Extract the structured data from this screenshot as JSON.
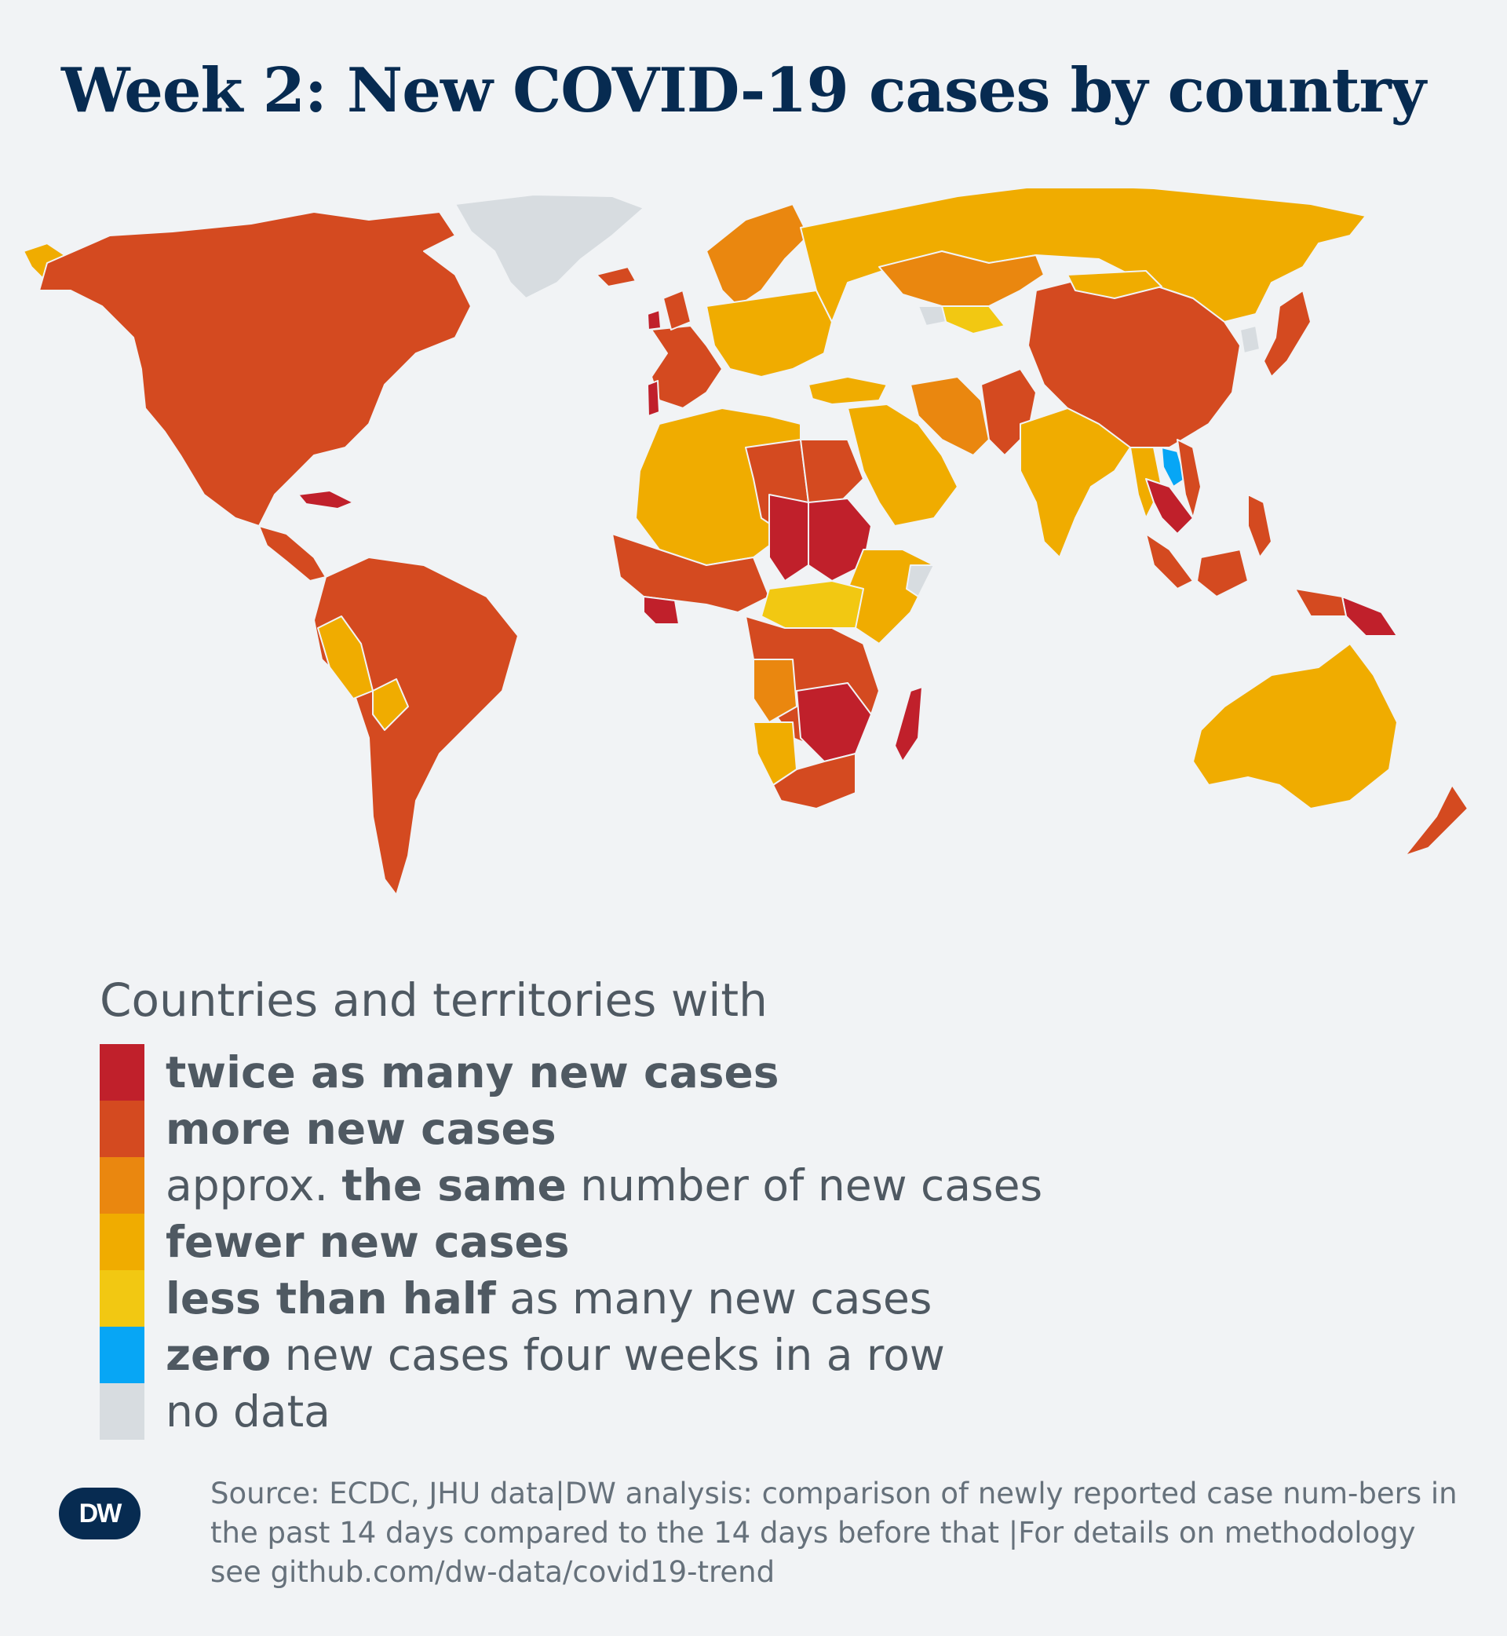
{
  "title": "Week 2: New COVID-19 cases by country",
  "colors": {
    "background": "#f1f3f5",
    "twice": "#c0202b",
    "more": "#d44a20",
    "same": "#ea870f",
    "fewer": "#f0ac00",
    "less_than_half": "#f2c812",
    "zero": "#07a6f5",
    "no_data": "#d7dce0"
  },
  "legend": {
    "heading": "Countries and territories with",
    "items": [
      {
        "key": "twice",
        "color": "#c0202b",
        "bold": "twice as many new cases",
        "rest": ""
      },
      {
        "key": "more",
        "color": "#d44a20",
        "bold": "more new cases",
        "rest": ""
      },
      {
        "key": "same",
        "color": "#ea870f",
        "pre": "approx. ",
        "bold": "the same",
        "rest": " number of new cases"
      },
      {
        "key": "fewer",
        "color": "#f0ac00",
        "bold": "fewer new cases",
        "rest": ""
      },
      {
        "key": "less_than_half",
        "color": "#f2c812",
        "bold": "less than half",
        "rest": " as many new cases"
      },
      {
        "key": "zero",
        "color": "#07a6f5",
        "bold": "zero",
        "rest": " new cases four weeks in a row"
      },
      {
        "key": "no_data",
        "color": "#d7dce0",
        "bold": "",
        "rest": "no data"
      }
    ]
  },
  "footer": {
    "logo": "DW",
    "source": "Source: ECDC, JHU data|DW analysis: comparison of newly reported case num-bers in the past 14 days compared to the 14 days before that |For details on methodology see github.com/dw-data/covid19-trend"
  }
}
